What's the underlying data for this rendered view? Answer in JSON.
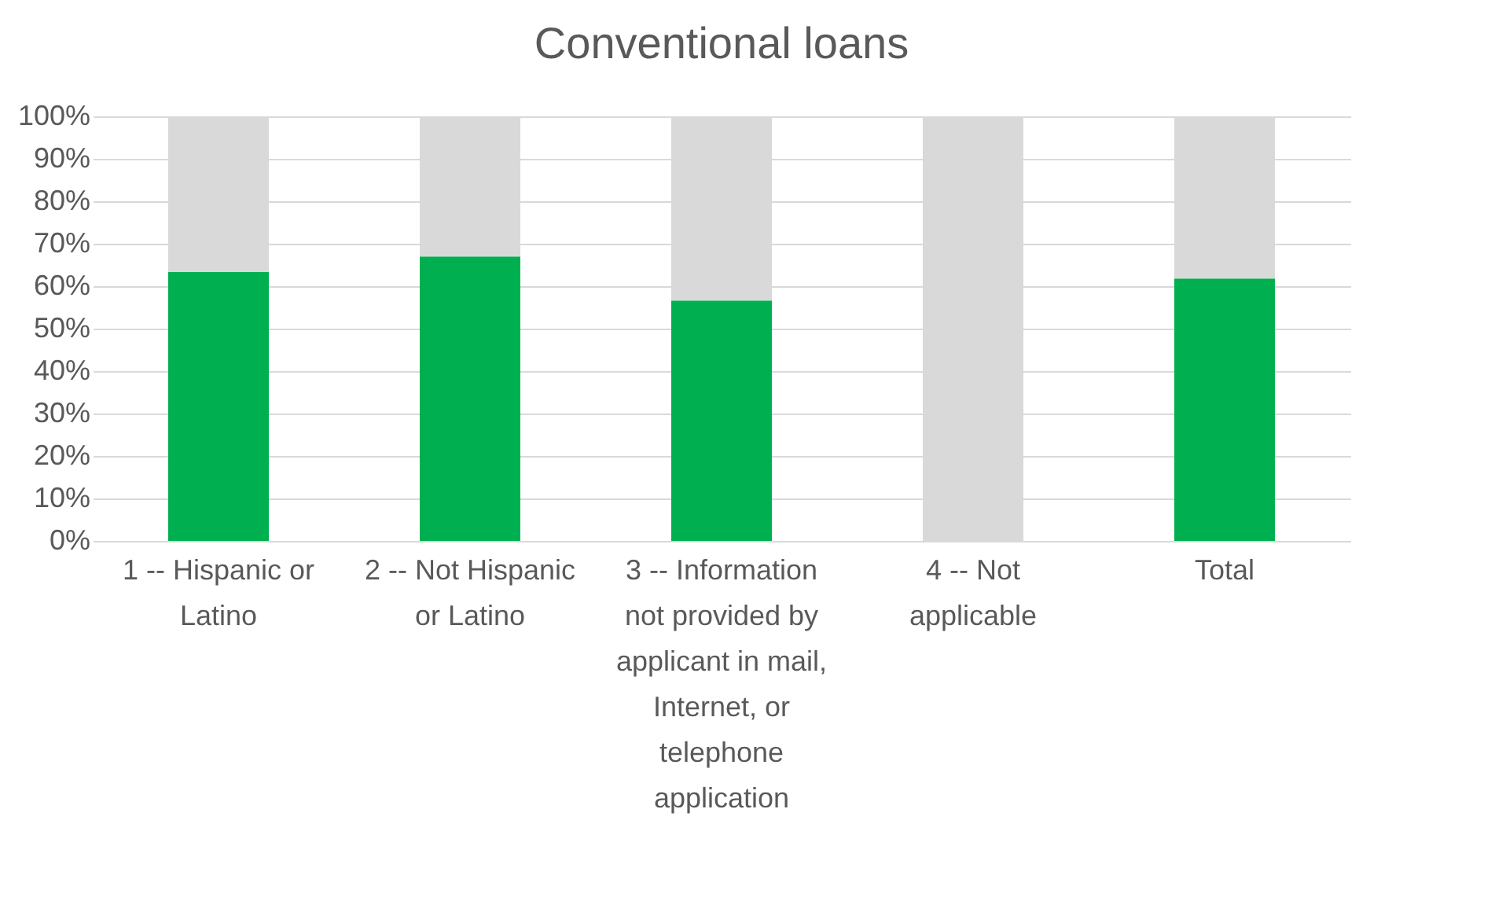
{
  "chart_data": {
    "type": "bar",
    "title": "Conventional loans",
    "stacked": true,
    "categories": [
      "1 -- Hispanic or Latino",
      "2 -- Not Hispanic or Latino",
      "3 -- Information not provided by applicant in mail, Internet, or telephone application",
      "4 -- Not applicable",
      "Total"
    ],
    "series": [
      {
        "color": "#00b050",
        "values": [
          63.4,
          67,
          56.6,
          0,
          61.8
        ]
      },
      {
        "color": "#d9d9d9",
        "values": [
          36.6,
          33,
          43.4,
          100,
          38.2
        ]
      }
    ],
    "ylim": [
      0,
      100
    ],
    "yticks": [
      {
        "value": 0,
        "label": "0%"
      },
      {
        "value": 10,
        "label": "10%"
      },
      {
        "value": 20,
        "label": "20%"
      },
      {
        "value": 30,
        "label": "30%"
      },
      {
        "value": 40,
        "label": "40%"
      },
      {
        "value": 50,
        "label": "50%"
      },
      {
        "value": 60,
        "label": "60%"
      },
      {
        "value": 70,
        "label": "70%"
      },
      {
        "value": 80,
        "label": "80%"
      },
      {
        "value": 90,
        "label": "90%"
      },
      {
        "value": 100,
        "label": "100%"
      }
    ],
    "grid": "y",
    "legend": false
  }
}
